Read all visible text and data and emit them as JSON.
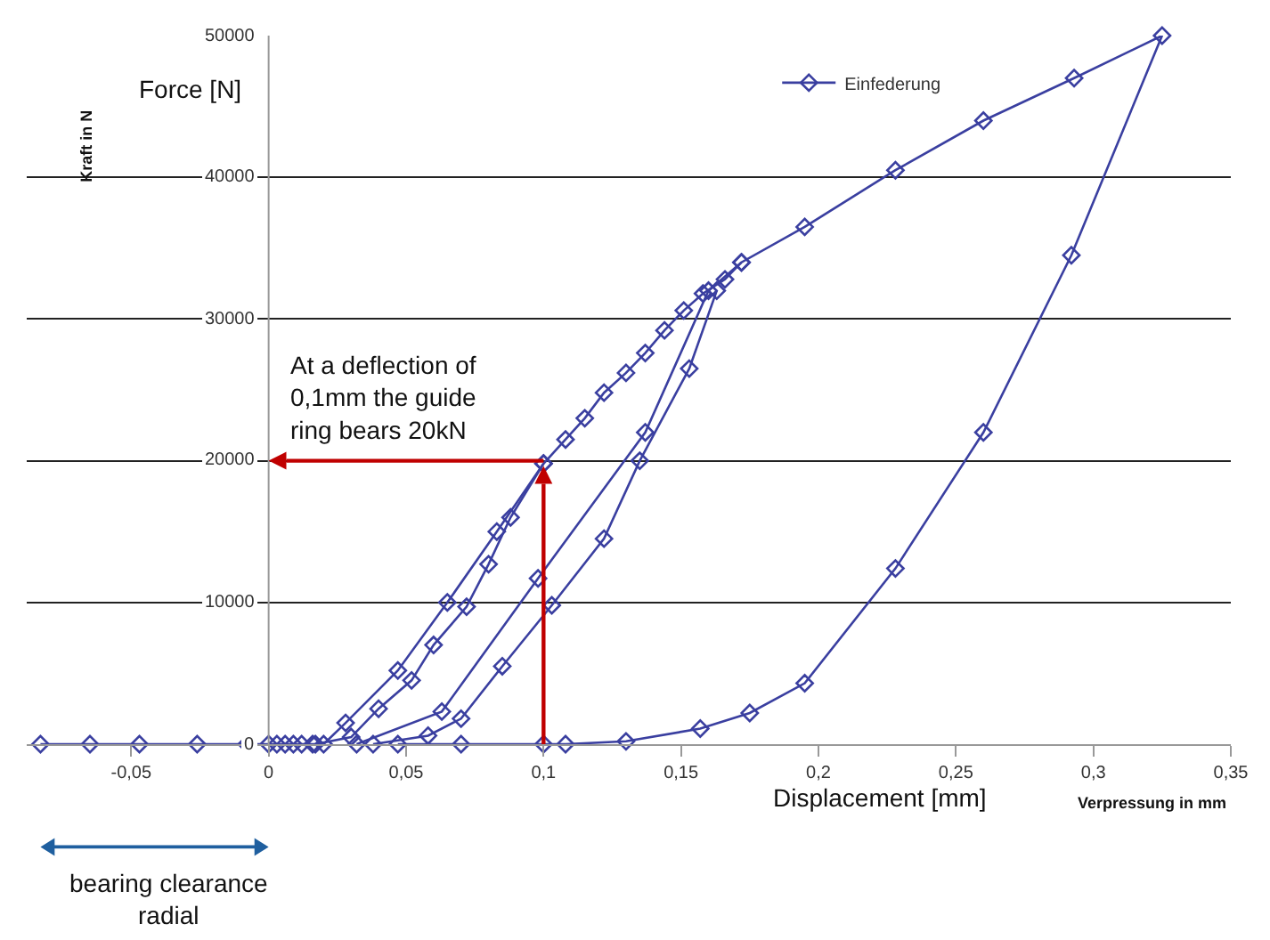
{
  "chart_data": {
    "type": "line",
    "ylabel": "Kraft in N",
    "xlabel": "Verpressung in mm",
    "annotations": [
      "Force [N]",
      "Displacement [mm]",
      {
        "text": "At a deflection of\n0,1mm the guide\nring bears 20kN",
        "x": 0.1,
        "y": 20000
      },
      "bearing clearance\nradial"
    ],
    "series": [
      {
        "name": "Einfederung",
        "color": "#3a3fa0",
        "x": [
          -0.083,
          -0.065,
          -0.047,
          -0.026,
          -0.008,
          0,
          0.003,
          0.006,
          0.009,
          0.012,
          0.016,
          0.02,
          0.028,
          0.047,
          0.065,
          0.083,
          0.1,
          0.108,
          0.115,
          0.122,
          0.13,
          0.137,
          0.144,
          0.151,
          0.158,
          0.166,
          0.172,
          0.195,
          0.228,
          0.26,
          0.293,
          0.325,
          0.292,
          0.26,
          0.228,
          0.195,
          0.175,
          0.157,
          0.13,
          0.108,
          0.1,
          0.07,
          0.047,
          null,
          0.017,
          0.03,
          0.04,
          0.052,
          0.06,
          0.072,
          0.08,
          0.088,
          0.1,
          null,
          0.032,
          0.063,
          0.098,
          0.137,
          0.16,
          0.172,
          null,
          0.038,
          0.058,
          0.07,
          0.085,
          0.103,
          0.122,
          0.135,
          0.153,
          0.163
        ],
        "values": [
          0,
          0,
          0,
          0,
          0,
          0,
          0,
          0,
          0,
          0,
          0,
          0,
          1500,
          5200,
          10000,
          15000,
          19800,
          21500,
          23000,
          24800,
          26200,
          27600,
          29200,
          30600,
          31800,
          32800,
          34000,
          36500,
          40500,
          44000,
          47000,
          50000,
          34500,
          22000,
          12400,
          4300,
          2200,
          1100,
          200,
          0,
          0,
          0,
          0,
          null,
          0,
          500,
          2500,
          4500,
          7000,
          9700,
          12700,
          16000,
          19800,
          null,
          0,
          2300,
          11700,
          22000,
          32000,
          34000,
          null,
          0,
          600,
          1800,
          5500,
          9800,
          14500,
          20000,
          26500,
          32000
        ]
      }
    ],
    "marker": "diamond",
    "line_style": "solid",
    "xlim": [
      -0.088,
      0.35
    ],
    "ylim": [
      0,
      50000
    ],
    "xticks": [
      {
        "value": -0.05,
        "label": "-0,05"
      },
      0,
      {
        "value": 0.05,
        "label": "0,05"
      },
      {
        "value": 0.1,
        "label": "0,1"
      },
      {
        "value": 0.15,
        "label": "0,15"
      },
      {
        "value": 0.2,
        "label": "0,2"
      },
      {
        "value": 0.25,
        "label": "0,25"
      },
      {
        "value": 0.3,
        "label": "0,3"
      },
      {
        "value": 0.35,
        "label": "0,35"
      }
    ],
    "yticks": [
      0,
      10000,
      20000,
      30000,
      40000,
      50000
    ],
    "grid": "y",
    "legend": "top",
    "ref_lines": [
      {
        "axis": "x",
        "value": 0.1,
        "color": "#c00000"
      },
      {
        "axis": "y",
        "value": 20000,
        "color": "#c00000"
      }
    ]
  }
}
